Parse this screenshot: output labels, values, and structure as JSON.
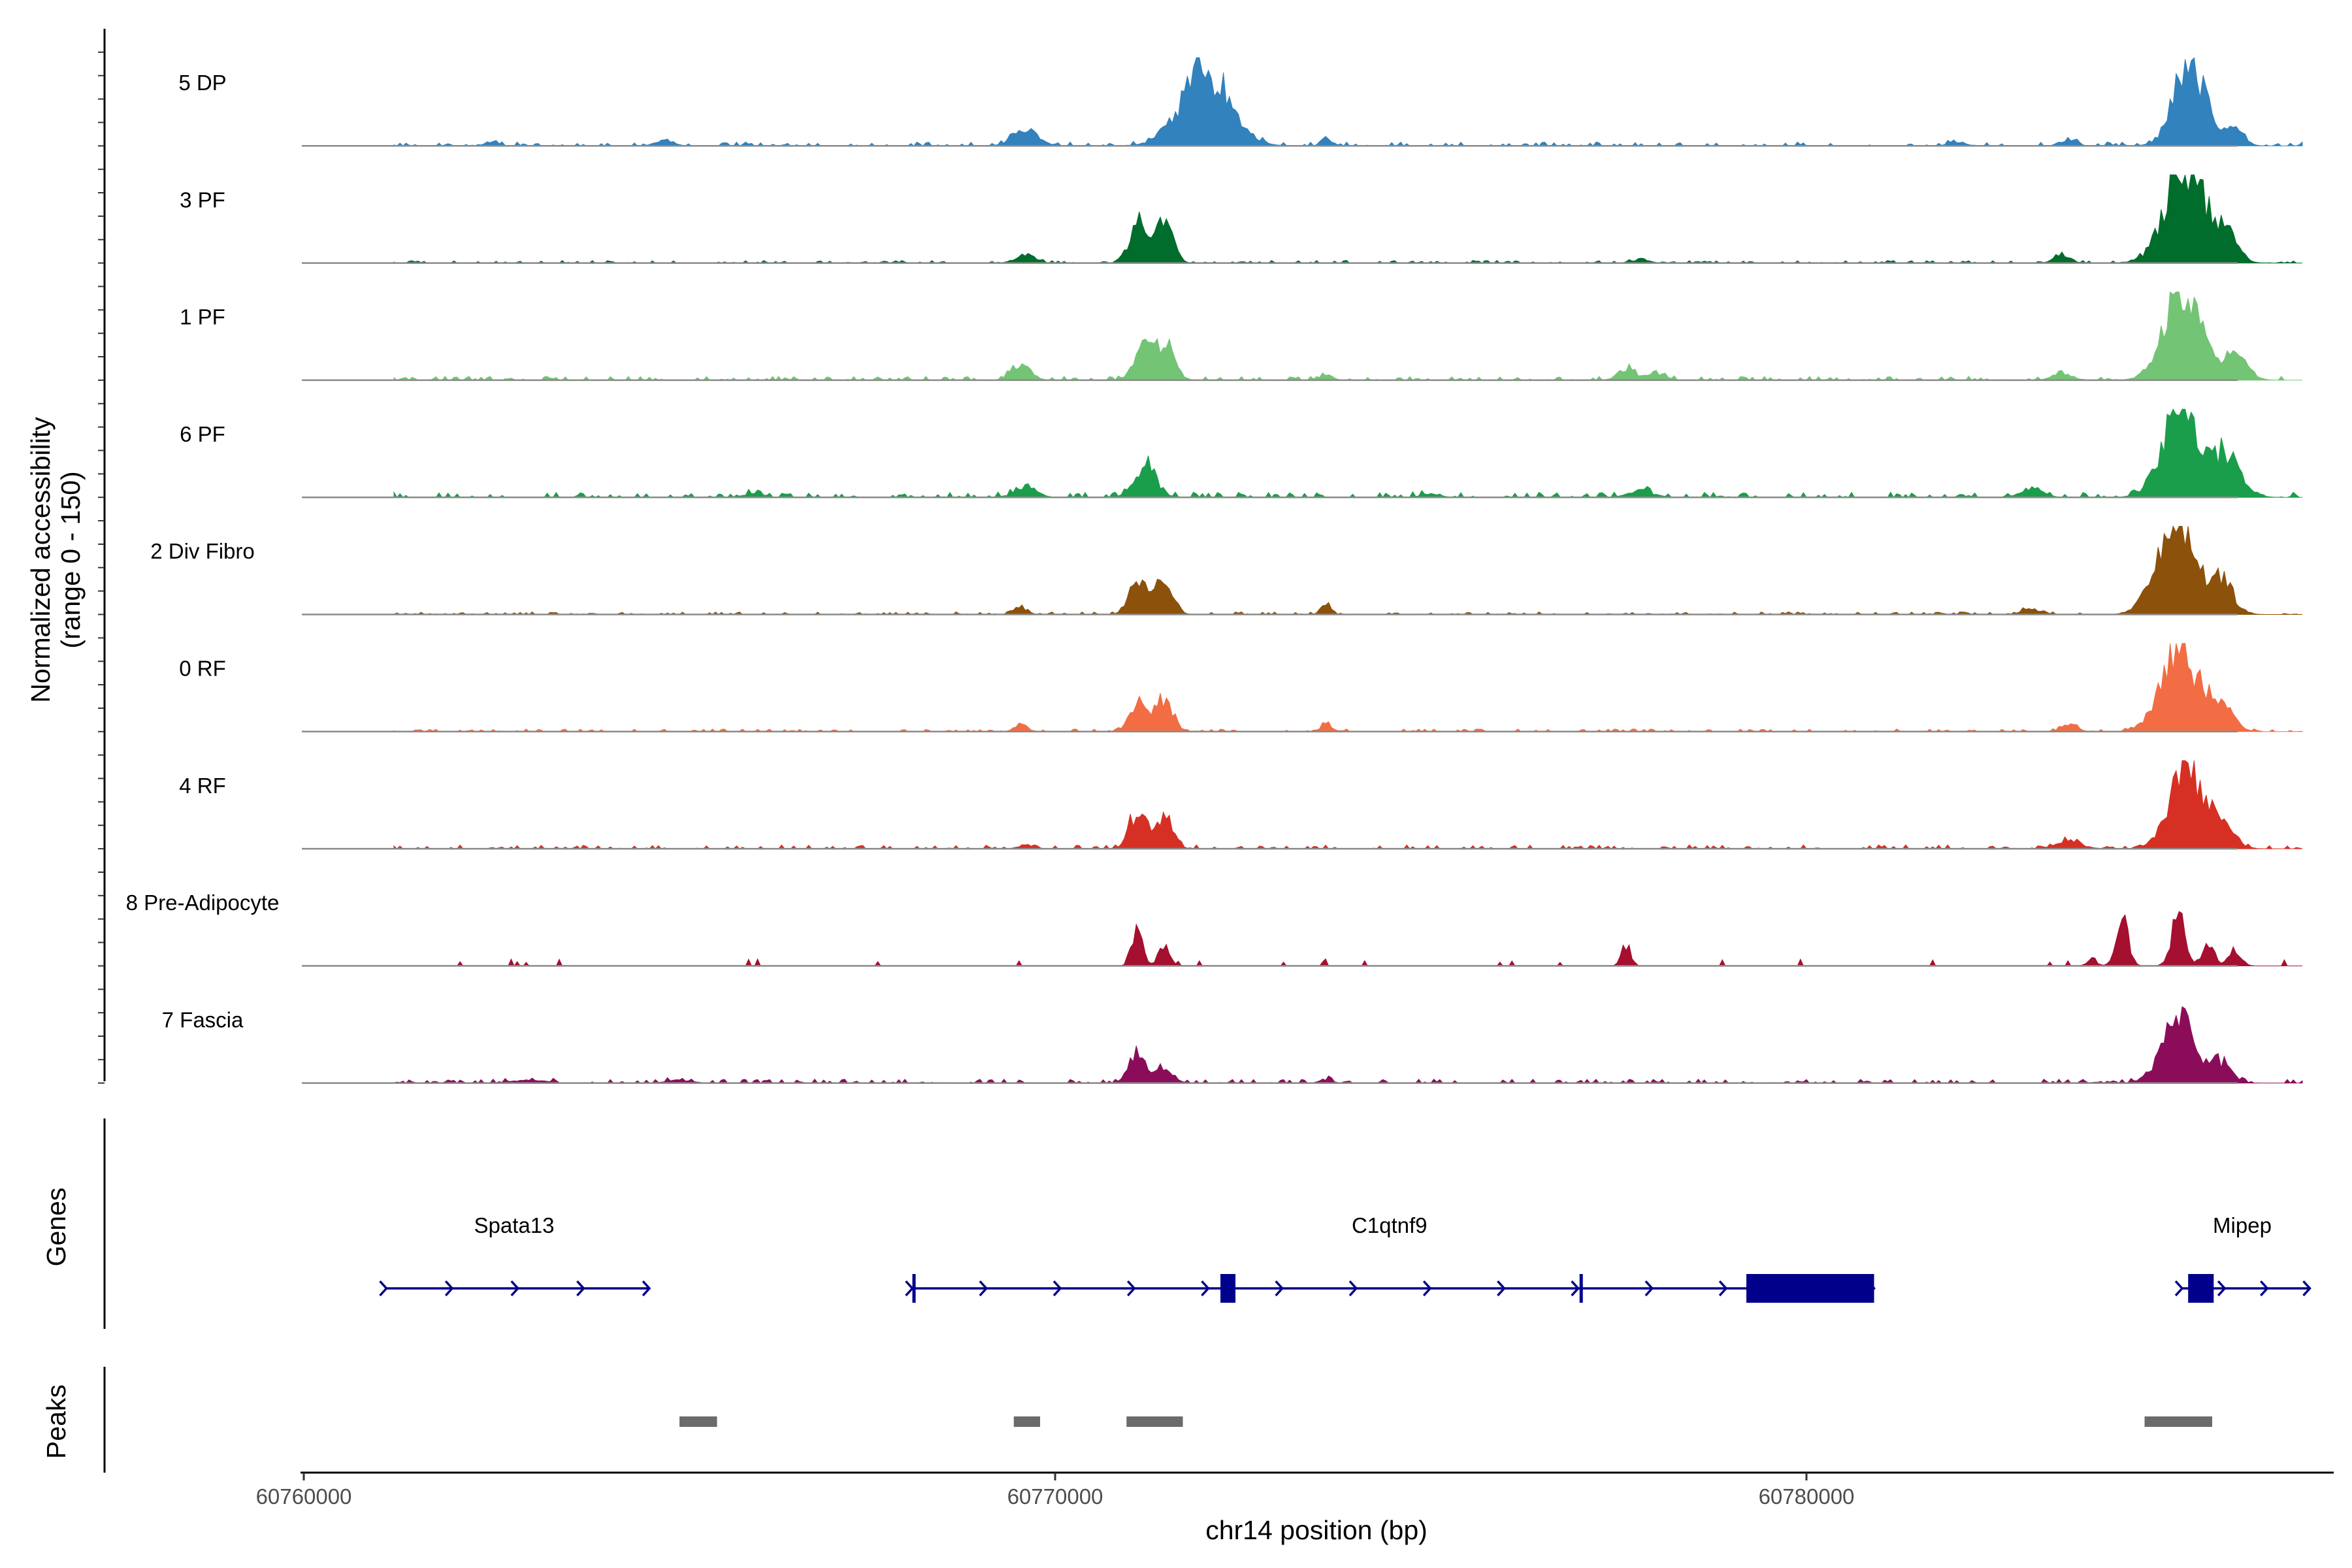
{
  "chart_data": {
    "type": "area",
    "title": "",
    "ylabel_line1": "Normalized accessibility",
    "ylabel_line2": "(range 0 - 150)",
    "xlabel": "chr14 position (bp)",
    "xlim": [
      60760000,
      60787000
    ],
    "ylim": [
      0,
      150
    ],
    "x_ticks": [
      60760000,
      60770000,
      60780000
    ],
    "x_tick_labels": [
      "60760000",
      "60770000",
      "60780000"
    ],
    "series": [
      {
        "name": "5 DP",
        "color": "#3182bd",
        "peaks": [
          [
            60772000,
            138,
            320
          ],
          [
            60769600,
            30,
            160
          ],
          [
            60773600,
            16,
            60
          ],
          [
            60785100,
            151,
            210
          ],
          [
            60785700,
            26,
            120
          ],
          [
            60762500,
            8,
            80
          ],
          [
            60764800,
            9,
            120
          ],
          [
            60782000,
            8,
            100
          ],
          [
            60783500,
            9,
            100
          ]
        ],
        "noise": 3,
        "seed": 11
      },
      {
        "name": "3 PF",
        "color": "#006d2c",
        "peaks": [
          [
            60771100,
            75,
            110
          ],
          [
            60771450,
            78,
            110
          ],
          [
            60769600,
            18,
            120
          ],
          [
            60785050,
            178,
            260
          ],
          [
            60785600,
            42,
            140
          ],
          [
            60783400,
            15,
            100
          ],
          [
            60777800,
            7,
            100
          ]
        ],
        "noise": 2,
        "seed": 23
      },
      {
        "name": "1 PF",
        "color": "#74c476",
        "peaks": [
          [
            60771200,
            66,
            130
          ],
          [
            60771500,
            58,
            110
          ],
          [
            60769550,
            30,
            120
          ],
          [
            60773600,
            12,
            80
          ],
          [
            60777600,
            22,
            110
          ],
          [
            60778000,
            12,
            120
          ],
          [
            60785000,
            173,
            240
          ],
          [
            60785700,
            45,
            160
          ],
          [
            60783400,
            14,
            120
          ]
        ],
        "noise": 3,
        "seed": 37
      },
      {
        "name": "6 PF",
        "color": "#1b9e4b",
        "peaks": [
          [
            60771200,
            62,
            140
          ],
          [
            60769600,
            20,
            140
          ],
          [
            60785000,
            155,
            250
          ],
          [
            60785600,
            70,
            190
          ],
          [
            60783000,
            18,
            140
          ],
          [
            60777800,
            12,
            160
          ],
          [
            60766000,
            8,
            120
          ],
          [
            60775000,
            6,
            120
          ]
        ],
        "noise": 4,
        "seed": 41
      },
      {
        "name": "2 Div Fibro",
        "color": "#8c510a",
        "peaks": [
          [
            60771100,
            65,
            110
          ],
          [
            60771450,
            70,
            110
          ],
          [
            60773600,
            22,
            60
          ],
          [
            60769550,
            13,
            80
          ],
          [
            60784900,
            170,
            240
          ],
          [
            60785500,
            70,
            160
          ],
          [
            60783000,
            10,
            120
          ]
        ],
        "noise": 2,
        "seed": 53
      },
      {
        "name": "0 RF",
        "color": "#f26d44",
        "peaks": [
          [
            60771100,
            55,
            110
          ],
          [
            60771450,
            62,
            110
          ],
          [
            60769550,
            15,
            80
          ],
          [
            60773600,
            18,
            60
          ],
          [
            60784950,
            165,
            230
          ],
          [
            60785500,
            50,
            160
          ],
          [
            60783500,
            12,
            100
          ]
        ],
        "noise": 2,
        "seed": 67
      },
      {
        "name": "4 RF",
        "color": "#d63024",
        "peaks": [
          [
            60771100,
            68,
            110
          ],
          [
            60771450,
            60,
            110
          ],
          [
            60785050,
            143,
            220
          ],
          [
            60785500,
            48,
            160
          ],
          [
            60783500,
            14,
            160
          ],
          [
            60769600,
            8,
            80
          ]
        ],
        "noise": 3,
        "seed": 71
      },
      {
        "name": "8 Pre-Adipocyte",
        "color": "#a50f30",
        "peaks": [
          [
            60771100,
            78,
            70
          ],
          [
            60771450,
            38,
            70
          ],
          [
            60777600,
            38,
            60
          ],
          [
            60784200,
            85,
            80
          ],
          [
            60784950,
            95,
            90
          ],
          [
            60785350,
            40,
            80
          ],
          [
            60785700,
            28,
            80
          ],
          [
            60783800,
            15,
            60
          ]
        ],
        "noise": 0,
        "seed": 83
      },
      {
        "name": "7 Fascia",
        "color": "#8b0d5a",
        "peaks": [
          [
            60771100,
            55,
            110
          ],
          [
            60771450,
            30,
            110
          ],
          [
            60784950,
            115,
            220
          ],
          [
            60785500,
            35,
            140
          ],
          [
            60763000,
            6,
            200
          ],
          [
            60765000,
            5,
            160
          ],
          [
            60773600,
            6,
            80
          ]
        ],
        "noise": 3,
        "seed": 97
      }
    ],
    "genes_track_label": "Genes",
    "genes": [
      {
        "name": "Spata13",
        "start": 60761100,
        "end": 60764600,
        "strand": "+",
        "label_pos": 60762800,
        "exons": []
      },
      {
        "name": "C1qtnf9",
        "start": 60768100,
        "end": 60780900,
        "strand": "+",
        "label_pos": 60774450,
        "exons": [
          [
            60768100,
            60768120
          ],
          [
            60772200,
            60772400
          ],
          [
            60776980,
            60777020
          ],
          [
            60779200,
            60780900
          ]
        ]
      },
      {
        "name": "Mipep",
        "start": 60785000,
        "end": 60786700,
        "strand": "+",
        "label_pos": 60785800,
        "exons": [
          [
            60785080,
            60785420
          ]
        ]
      }
    ],
    "peaks_track_label": "Peaks",
    "peak_regions": [
      [
        60765000,
        60765500
      ],
      [
        60769450,
        60769800
      ],
      [
        60770950,
        60771700
      ],
      [
        60784500,
        60785400
      ]
    ]
  }
}
